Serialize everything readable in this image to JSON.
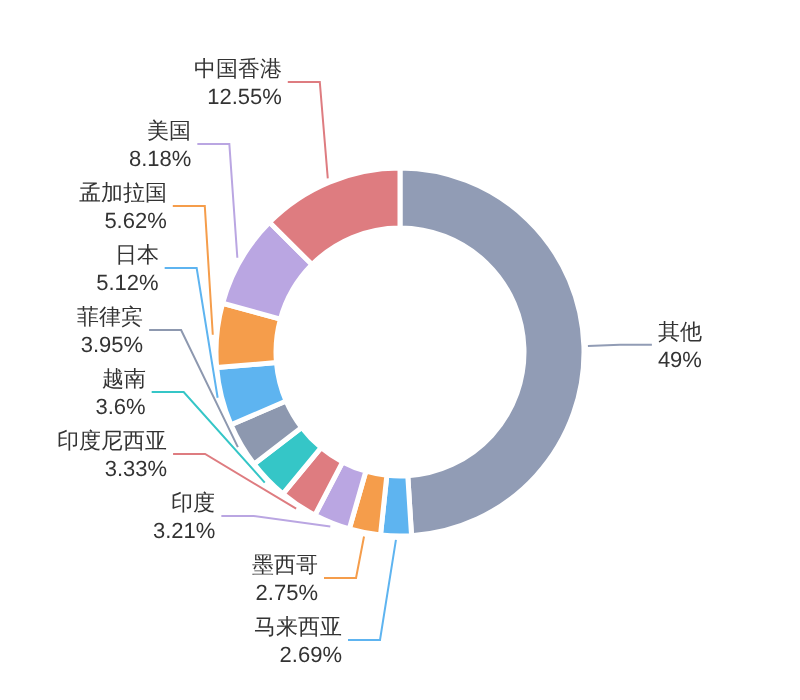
{
  "chart_data": {
    "type": "donut",
    "categories": [
      "其他",
      "马来西亚",
      "墨西哥",
      "印度",
      "印度尼西亚",
      "越南",
      "菲律宾",
      "日本",
      "孟加拉国",
      "美国",
      "中国香港"
    ],
    "values": [
      49,
      2.69,
      2.75,
      3.21,
      3.33,
      3.6,
      3.95,
      5.12,
      5.62,
      8.18,
      12.55
    ],
    "colors": [
      "#919cb5",
      "#5eb4f0",
      "#f59d4b",
      "#baa6e2",
      "#de7c80",
      "#35c6c7",
      "#8d98af",
      "#5eb4f0",
      "#f59d4b",
      "#baa6e2",
      "#de7c80"
    ],
    "value_labels": [
      "49%",
      "2.69%",
      "2.75%",
      "3.21%",
      "3.33%",
      "3.6%",
      "3.95%",
      "5.12%",
      "5.62%",
      "8.18%",
      "12.55%"
    ]
  }
}
